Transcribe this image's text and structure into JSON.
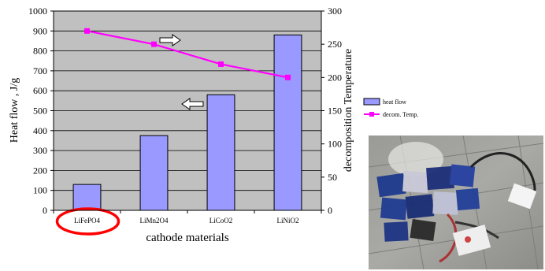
{
  "chart_data": {
    "type": "bar",
    "categories": [
      "LiFePO4",
      "LiMn2O4",
      "LiCoO2",
      "LiNiO2"
    ],
    "series": [
      {
        "name": "heat flow",
        "type": "bar",
        "axis": "left",
        "values": [
          130,
          375,
          580,
          880
        ]
      },
      {
        "name": "decom. Temp.",
        "type": "line",
        "axis": "right",
        "values": [
          270,
          250,
          220,
          200
        ]
      }
    ],
    "xlabel": "cathode materials",
    "ylabel": "Heat flow , J/g",
    "y2label": "decomposition Temperature",
    "ylim": [
      0,
      1000
    ],
    "y2lim": [
      0,
      300
    ],
    "yticks": [
      0,
      100,
      200,
      300,
      400,
      500,
      600,
      700,
      800,
      900,
      1000
    ],
    "y2ticks": [
      0,
      50,
      100,
      150,
      200,
      250,
      300
    ],
    "grid": true,
    "legend": "right",
    "highlighted_category": "LiFePO4"
  },
  "colors": {
    "plot_background": "#c0c0c0",
    "bar_fill": "#9999ff",
    "line": "#ff00ff",
    "highlight": "#ff0000"
  }
}
